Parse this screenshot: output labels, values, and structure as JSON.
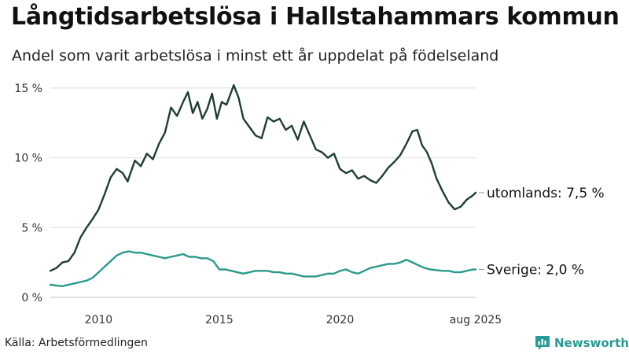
{
  "title": "Långtidsarbetslösa i Hallstahammars kommun",
  "subtitle": "Andel som varit arbetslösa i minst ett år uppdelat på födelseland",
  "source": "Källa: Arbetsförmedlingen",
  "brand": {
    "name": "Newsworthy",
    "icon": "bar-chart-logo-icon",
    "color": "#2a9a94"
  },
  "chart_data": {
    "type": "line",
    "ylim": [
      0,
      15.5
    ],
    "xlim": [
      2008.0,
      2025.62
    ],
    "grid": true,
    "yticks": [
      {
        "value": 0,
        "label": "0 %"
      },
      {
        "value": 5,
        "label": "5 %"
      },
      {
        "value": 10,
        "label": "10 %"
      },
      {
        "value": 15,
        "label": "15 %"
      }
    ],
    "xticks": [
      {
        "value": 2010,
        "label": "2010"
      },
      {
        "value": 2015,
        "label": "2015"
      },
      {
        "value": 2020,
        "label": "2020"
      },
      {
        "value": 2025.62,
        "label": "aug 2025"
      }
    ],
    "series": [
      {
        "name": "utomlands",
        "color": "#1f3d36",
        "end_label": "utomlands: 7,5 %",
        "points": [
          [
            2008.0,
            1.9
          ],
          [
            2008.25,
            2.1
          ],
          [
            2008.5,
            2.5
          ],
          [
            2008.75,
            2.6
          ],
          [
            2009.0,
            3.2
          ],
          [
            2009.25,
            4.3
          ],
          [
            2009.5,
            5.0
          ],
          [
            2009.75,
            5.6
          ],
          [
            2010.0,
            6.3
          ],
          [
            2010.25,
            7.4
          ],
          [
            2010.5,
            8.6
          ],
          [
            2010.75,
            9.2
          ],
          [
            2011.0,
            8.9
          ],
          [
            2011.2,
            8.3
          ],
          [
            2011.5,
            9.8
          ],
          [
            2011.75,
            9.4
          ],
          [
            2012.0,
            10.3
          ],
          [
            2012.25,
            9.9
          ],
          [
            2012.5,
            11.0
          ],
          [
            2012.75,
            11.8
          ],
          [
            2013.0,
            13.6
          ],
          [
            2013.25,
            13.0
          ],
          [
            2013.5,
            14.0
          ],
          [
            2013.7,
            14.7
          ],
          [
            2013.9,
            13.2
          ],
          [
            2014.1,
            14.0
          ],
          [
            2014.3,
            12.8
          ],
          [
            2014.5,
            13.5
          ],
          [
            2014.7,
            14.6
          ],
          [
            2014.9,
            12.8
          ],
          [
            2015.1,
            14.0
          ],
          [
            2015.3,
            13.8
          ],
          [
            2015.6,
            15.2
          ],
          [
            2015.8,
            14.3
          ],
          [
            2016.0,
            12.8
          ],
          [
            2016.25,
            12.2
          ],
          [
            2016.5,
            11.6
          ],
          [
            2016.75,
            11.4
          ],
          [
            2017.0,
            12.9
          ],
          [
            2017.25,
            12.6
          ],
          [
            2017.5,
            12.8
          ],
          [
            2017.75,
            12.0
          ],
          [
            2018.0,
            12.3
          ],
          [
            2018.25,
            11.3
          ],
          [
            2018.5,
            12.6
          ],
          [
            2018.75,
            11.6
          ],
          [
            2019.0,
            10.6
          ],
          [
            2019.25,
            10.4
          ],
          [
            2019.5,
            10.0
          ],
          [
            2019.75,
            10.3
          ],
          [
            2020.0,
            9.2
          ],
          [
            2020.25,
            8.9
          ],
          [
            2020.5,
            9.1
          ],
          [
            2020.75,
            8.5
          ],
          [
            2021.0,
            8.7
          ],
          [
            2021.25,
            8.4
          ],
          [
            2021.5,
            8.2
          ],
          [
            2021.75,
            8.7
          ],
          [
            2022.0,
            9.3
          ],
          [
            2022.25,
            9.7
          ],
          [
            2022.5,
            10.2
          ],
          [
            2022.75,
            11.0
          ],
          [
            2023.0,
            11.9
          ],
          [
            2023.2,
            12.0
          ],
          [
            2023.4,
            10.9
          ],
          [
            2023.6,
            10.4
          ],
          [
            2023.8,
            9.6
          ],
          [
            2024.0,
            8.5
          ],
          [
            2024.25,
            7.6
          ],
          [
            2024.5,
            6.8
          ],
          [
            2024.75,
            6.3
          ],
          [
            2025.0,
            6.5
          ],
          [
            2025.25,
            7.0
          ],
          [
            2025.5,
            7.3
          ],
          [
            2025.62,
            7.5
          ]
        ]
      },
      {
        "name": "Sverige",
        "color": "#2a9a8c",
        "end_label": "Sverige: 2,0 %",
        "points": [
          [
            2008.0,
            0.9
          ],
          [
            2008.25,
            0.85
          ],
          [
            2008.5,
            0.8
          ],
          [
            2008.75,
            0.9
          ],
          [
            2009.0,
            1.0
          ],
          [
            2009.25,
            1.1
          ],
          [
            2009.5,
            1.2
          ],
          [
            2009.75,
            1.4
          ],
          [
            2010.0,
            1.8
          ],
          [
            2010.25,
            2.2
          ],
          [
            2010.5,
            2.6
          ],
          [
            2010.75,
            3.0
          ],
          [
            2011.0,
            3.2
          ],
          [
            2011.25,
            3.3
          ],
          [
            2011.5,
            3.2
          ],
          [
            2011.75,
            3.2
          ],
          [
            2012.0,
            3.1
          ],
          [
            2012.25,
            3.0
          ],
          [
            2012.5,
            2.9
          ],
          [
            2012.75,
            2.8
          ],
          [
            2013.0,
            2.9
          ],
          [
            2013.25,
            3.0
          ],
          [
            2013.5,
            3.1
          ],
          [
            2013.75,
            2.9
          ],
          [
            2014.0,
            2.9
          ],
          [
            2014.25,
            2.8
          ],
          [
            2014.5,
            2.8
          ],
          [
            2014.75,
            2.6
          ],
          [
            2015.0,
            2.0
          ],
          [
            2015.25,
            2.0
          ],
          [
            2015.5,
            1.9
          ],
          [
            2015.75,
            1.8
          ],
          [
            2016.0,
            1.7
          ],
          [
            2016.25,
            1.8
          ],
          [
            2016.5,
            1.9
          ],
          [
            2016.75,
            1.9
          ],
          [
            2017.0,
            1.9
          ],
          [
            2017.25,
            1.8
          ],
          [
            2017.5,
            1.8
          ],
          [
            2017.75,
            1.7
          ],
          [
            2018.0,
            1.7
          ],
          [
            2018.25,
            1.6
          ],
          [
            2018.5,
            1.5
          ],
          [
            2018.75,
            1.5
          ],
          [
            2019.0,
            1.5
          ],
          [
            2019.25,
            1.6
          ],
          [
            2019.5,
            1.7
          ],
          [
            2019.75,
            1.7
          ],
          [
            2020.0,
            1.9
          ],
          [
            2020.25,
            2.0
          ],
          [
            2020.5,
            1.8
          ],
          [
            2020.75,
            1.7
          ],
          [
            2021.0,
            1.9
          ],
          [
            2021.25,
            2.1
          ],
          [
            2021.5,
            2.2
          ],
          [
            2021.75,
            2.3
          ],
          [
            2022.0,
            2.4
          ],
          [
            2022.25,
            2.4
          ],
          [
            2022.5,
            2.5
          ],
          [
            2022.75,
            2.7
          ],
          [
            2023.0,
            2.5
          ],
          [
            2023.25,
            2.3
          ],
          [
            2023.5,
            2.1
          ],
          [
            2023.75,
            2.0
          ],
          [
            2024.0,
            1.95
          ],
          [
            2024.25,
            1.9
          ],
          [
            2024.5,
            1.9
          ],
          [
            2024.75,
            1.8
          ],
          [
            2025.0,
            1.8
          ],
          [
            2025.25,
            1.9
          ],
          [
            2025.5,
            2.0
          ],
          [
            2025.62,
            2.0
          ]
        ]
      }
    ]
  }
}
